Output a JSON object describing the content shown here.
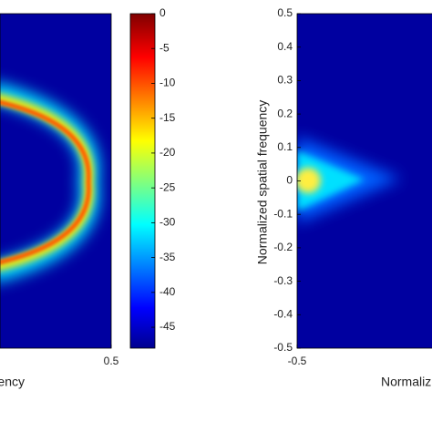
{
  "chart_data": [
    {
      "type": "heatmap",
      "xlabel": "ency",
      "xlim": [
        -0.5,
        0.5
      ],
      "xticks": [
        0.5
      ],
      "ylim": [
        -0.5,
        0.5
      ],
      "colorbar": {
        "lim": [
          -48,
          0
        ],
        "ticks": [
          0,
          -5,
          -10,
          -15,
          -20,
          -25,
          -30,
          -35,
          -40,
          -45
        ]
      }
    },
    {
      "type": "heatmap",
      "xlabel": "Normaliz",
      "ylabel": "Normalized spatial frequency",
      "xlim": [
        -0.5,
        0.5
      ],
      "xticks": [
        -0.5
      ],
      "ylim": [
        -0.5,
        0.5
      ],
      "yticks": [
        0.5,
        0.4,
        0.3,
        0.2,
        0.1,
        0,
        -0.1,
        -0.2,
        -0.3,
        -0.4,
        -0.5
      ]
    }
  ]
}
